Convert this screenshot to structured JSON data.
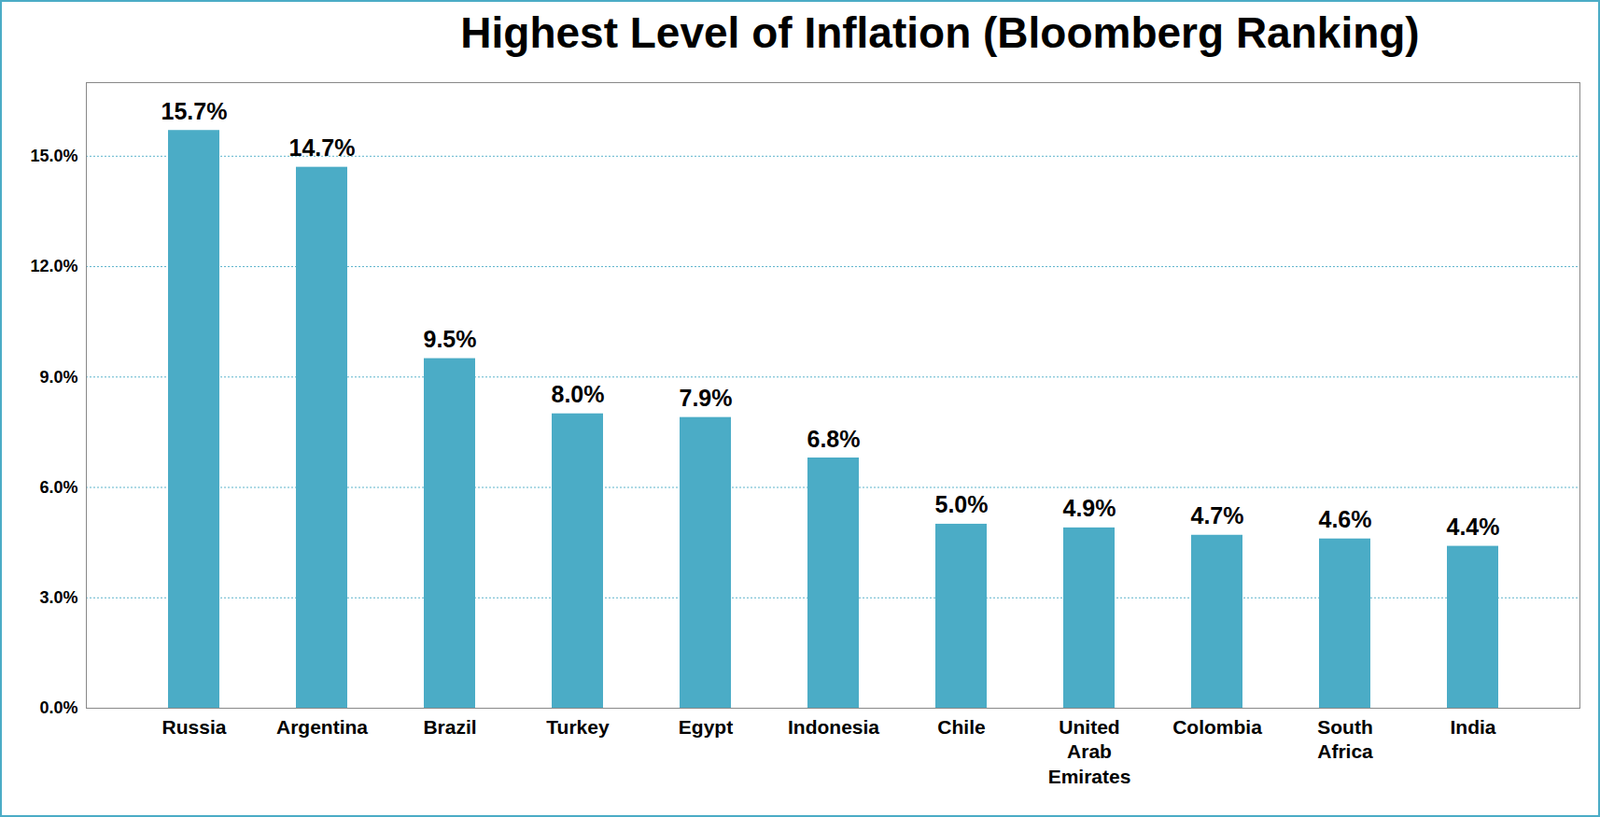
{
  "chart_data": {
    "type": "bar",
    "title": "Highest Level of Inflation (Bloomberg Ranking)",
    "categories": [
      "Russia",
      "Argentina",
      "Brazil",
      "Turkey",
      "Egypt",
      "Indonesia",
      "Chile",
      "United Arab Emirates",
      "Colombia",
      "South Africa",
      "India"
    ],
    "values": [
      15.7,
      14.7,
      9.5,
      8.0,
      7.9,
      6.8,
      5.0,
      4.9,
      4.7,
      4.6,
      4.4
    ],
    "value_labels": [
      "15.7%",
      "14.7%",
      "9.5%",
      "8.0%",
      "7.9%",
      "6.8%",
      "5.0%",
      "4.9%",
      "4.7%",
      "4.6%",
      "4.4%"
    ],
    "color": "#4bacc6",
    "ylim": [
      0,
      17
    ],
    "yticks": [
      {
        "value": 0,
        "label": "0.0%"
      },
      {
        "value": 3,
        "label": "3.0%"
      },
      {
        "value": 6,
        "label": "6.0%"
      },
      {
        "value": 9,
        "label": "9.0%"
      },
      {
        "value": 12,
        "label": "12.0%"
      },
      {
        "value": 15,
        "label": "15.0%"
      }
    ],
    "grid": true,
    "data_labels": true
  }
}
